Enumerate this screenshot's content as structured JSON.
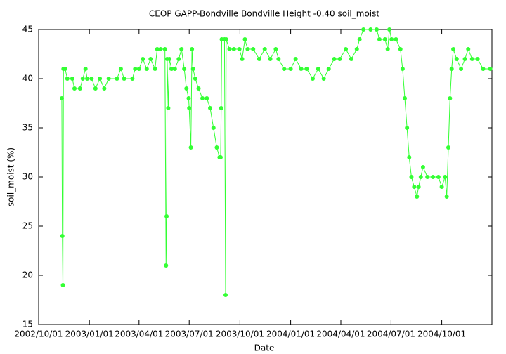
{
  "chart_data": {
    "type": "line",
    "title": "CEOP GAPP-Bondville Bondville Height -0.40 soil_moist",
    "xlabel": "Date",
    "ylabel": "soil_moist (%)",
    "xlim": [
      "2002/10/01",
      "2004/12/31"
    ],
    "xticks": [
      "2002/10/01",
      "2003/01/01",
      "2003/04/01",
      "2003/07/01",
      "2003/10/01",
      "2004/01/01",
      "2004/04/01",
      "2004/07/01",
      "2004/10/01"
    ],
    "ylim": [
      15,
      45
    ],
    "yticks": [
      15,
      20,
      25,
      30,
      35,
      40,
      45
    ],
    "x": [
      "2002/11/12",
      "2002/11/13",
      "2002/11/14",
      "2002/11/15",
      "2002/11/18",
      "2002/11/22",
      "2002/12/01",
      "2002/12/05",
      "2002/12/15",
      "2002/12/20",
      "2002/12/25",
      "2002/12/28",
      "2003/01/05",
      "2003/01/12",
      "2003/01/20",
      "2003/01/28",
      "2003/02/05",
      "2003/02/20",
      "2003/02/27",
      "2003/03/05",
      "2003/03/20",
      "2003/03/25",
      "2003/04/01",
      "2003/04/08",
      "2003/04/15",
      "2003/04/22",
      "2003/04/30",
      "2003/05/04",
      "2003/05/10",
      "2003/05/18",
      "2003/05/20",
      "2003/05/21",
      "2003/05/22",
      "2003/05/24",
      "2003/05/26",
      "2003/05/30",
      "2003/06/05",
      "2003/06/12",
      "2003/06/17",
      "2003/06/22",
      "2003/06/26",
      "2003/06/30",
      "2003/07/01",
      "2003/07/04",
      "2003/07/06",
      "2003/07/08",
      "2003/07/12",
      "2003/07/18",
      "2003/07/25",
      "2003/08/02",
      "2003/08/08",
      "2003/08/14",
      "2003/08/20",
      "2003/08/25",
      "2003/08/27",
      "2003/08/28",
      "2003/08/29",
      "2003/09/03",
      "2003/09/05",
      "2003/09/06",
      "2003/09/12",
      "2003/09/20",
      "2003/09/30",
      "2003/10/05",
      "2003/10/10",
      "2003/10/15",
      "2003/10/25",
      "2003/11/05",
      "2003/11/15",
      "2003/11/25",
      "2003/12/05",
      "2003/12/10",
      "2003/12/20",
      "2004/01/01",
      "2004/01/10",
      "2004/01/20",
      "2004/01/30",
      "2004/02/10",
      "2004/02/20",
      "2004/03/01",
      "2004/03/10",
      "2004/03/20",
      "2004/03/30",
      "2004/04/10",
      "2004/04/20",
      "2004/04/30",
      "2004/05/05",
      "2004/05/12",
      "2004/05/25",
      "2004/06/05",
      "2004/06/10",
      "2004/06/20",
      "2004/06/25",
      "2004/06/28",
      "2004/07/02",
      "2004/07/10",
      "2004/07/18",
      "2004/07/22",
      "2004/07/26",
      "2004/07/30",
      "2004/08/03",
      "2004/08/07",
      "2004/08/12",
      "2004/08/17",
      "2004/08/20",
      "2004/08/24",
      "2004/08/28",
      "2004/09/05",
      "2004/09/15",
      "2004/09/25",
      "2004/10/01",
      "2004/10/07",
      "2004/10/10",
      "2004/10/13",
      "2004/10/16",
      "2004/10/19",
      "2004/10/22",
      "2004/10/28",
      "2004/11/05",
      "2004/11/12",
      "2004/11/18",
      "2004/11/25",
      "2004/12/05",
      "2004/12/15",
      "2004/12/28"
    ],
    "series": [
      {
        "name": "soil_moist",
        "color": "#33ff33",
        "values": [
          38,
          24,
          19,
          41,
          41,
          40,
          40,
          39,
          39,
          40,
          41,
          40,
          40,
          39,
          40,
          39,
          40,
          40,
          41,
          40,
          40,
          41,
          41,
          42,
          41,
          42,
          41,
          43,
          43,
          43,
          21,
          26,
          42,
          37,
          42,
          41,
          41,
          42,
          43,
          41,
          39,
          38,
          37,
          33,
          43,
          41,
          40,
          39,
          38,
          38,
          37,
          35,
          33,
          32,
          32,
          37,
          44,
          44,
          18,
          44,
          43,
          43,
          43,
          42,
          44,
          43,
          43,
          42,
          43,
          42,
          43,
          42,
          41,
          41,
          42,
          41,
          41,
          40,
          41,
          40,
          41,
          42,
          42,
          43,
          42,
          43,
          44,
          45,
          45,
          45,
          44,
          44,
          43,
          45,
          44,
          44,
          43,
          41,
          38,
          35,
          32,
          30,
          29,
          28,
          29,
          30,
          31,
          30,
          30,
          30,
          29,
          30,
          28,
          33,
          38,
          41,
          43,
          42,
          41,
          42,
          43,
          42,
          42,
          41,
          41
        ]
      }
    ]
  }
}
